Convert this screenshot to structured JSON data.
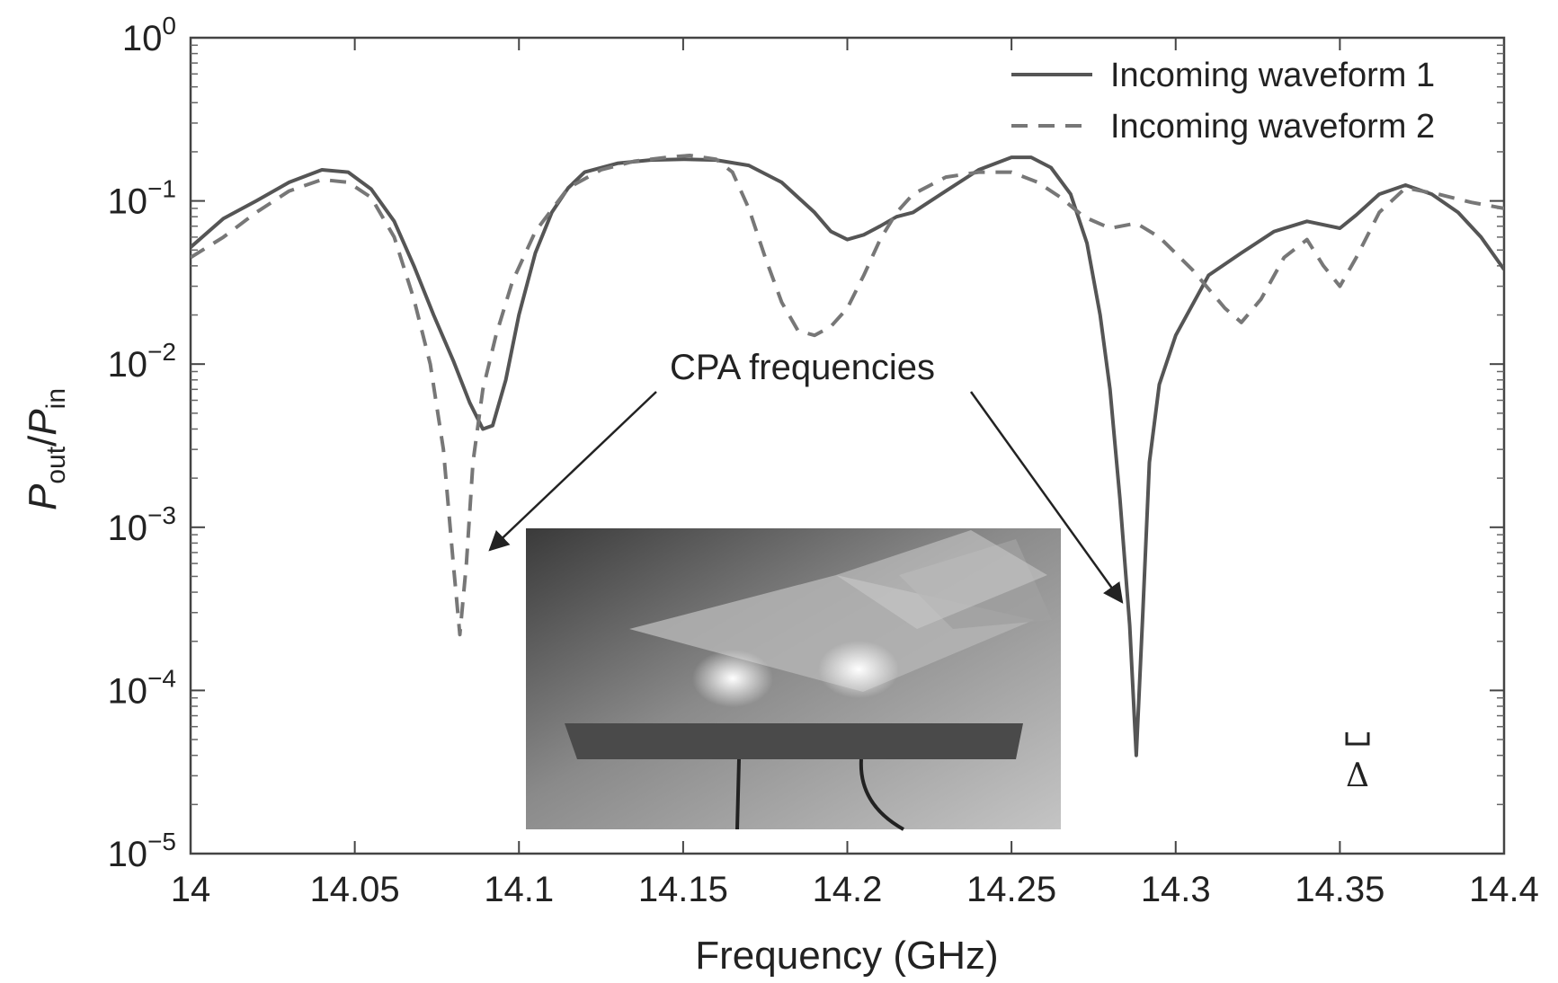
{
  "chart_data": {
    "type": "line",
    "xlabel": "Frequency (GHz)",
    "ylabel": "Pout/Pin",
    "ylabel_parts": {
      "p1": "P",
      "sub1": "out",
      "slash": "/",
      "p2": "P",
      "sub2": "in"
    },
    "x_scale": "linear",
    "y_scale": "log",
    "xlim": [
      14,
      14.4
    ],
    "ylim": [
      1e-05,
      1
    ],
    "x_ticks": [
      14,
      14.05,
      14.1,
      14.15,
      14.2,
      14.25,
      14.3,
      14.35,
      14.4
    ],
    "x_tick_labels": [
      "14",
      "14.05",
      "14.1",
      "14.15",
      "14.2",
      "14.25",
      "14.3",
      "14.35",
      "14.4"
    ],
    "y_ticks": [
      {
        "value": 1,
        "base": "10",
        "exp": "0"
      },
      {
        "value": 0.1,
        "base": "10",
        "exp": "−1"
      },
      {
        "value": 0.01,
        "base": "10",
        "exp": "−2"
      },
      {
        "value": 0.001,
        "base": "10",
        "exp": "−3"
      },
      {
        "value": 0.0001,
        "base": "10",
        "exp": "−4"
      },
      {
        "value": 1e-05,
        "base": "10",
        "exp": "−5"
      }
    ],
    "grid": false,
    "legend_position": "top-right",
    "series": [
      {
        "name": "Incoming waveform 1",
        "style": "solid",
        "color": "#555555",
        "points": [
          [
            14.0,
            0.052
          ],
          [
            14.01,
            0.078
          ],
          [
            14.02,
            0.1
          ],
          [
            14.03,
            0.13
          ],
          [
            14.04,
            0.155
          ],
          [
            14.048,
            0.15
          ],
          [
            14.055,
            0.118
          ],
          [
            14.062,
            0.075
          ],
          [
            14.068,
            0.04
          ],
          [
            14.074,
            0.02
          ],
          [
            14.08,
            0.0105
          ],
          [
            14.085,
            0.0058
          ],
          [
            14.089,
            0.004
          ],
          [
            14.092,
            0.0042
          ],
          [
            14.096,
            0.008
          ],
          [
            14.1,
            0.02
          ],
          [
            14.105,
            0.048
          ],
          [
            14.11,
            0.085
          ],
          [
            14.115,
            0.12
          ],
          [
            14.12,
            0.15
          ],
          [
            14.13,
            0.17
          ],
          [
            14.14,
            0.178
          ],
          [
            14.15,
            0.18
          ],
          [
            14.16,
            0.178
          ],
          [
            14.17,
            0.165
          ],
          [
            14.18,
            0.13
          ],
          [
            14.19,
            0.085
          ],
          [
            14.195,
            0.065
          ],
          [
            14.2,
            0.058
          ],
          [
            14.205,
            0.062
          ],
          [
            14.21,
            0.07
          ],
          [
            14.215,
            0.08
          ],
          [
            14.22,
            0.085
          ],
          [
            14.23,
            0.115
          ],
          [
            14.24,
            0.155
          ],
          [
            14.25,
            0.185
          ],
          [
            14.256,
            0.185
          ],
          [
            14.262,
            0.16
          ],
          [
            14.268,
            0.11
          ],
          [
            14.273,
            0.055
          ],
          [
            14.277,
            0.02
          ],
          [
            14.28,
            0.007
          ],
          [
            14.283,
            0.0015
          ],
          [
            14.286,
            0.00025
          ],
          [
            14.288,
            4e-05
          ],
          [
            14.29,
            0.0003
          ],
          [
            14.292,
            0.0025
          ],
          [
            14.295,
            0.0075
          ],
          [
            14.3,
            0.015
          ],
          [
            14.31,
            0.035
          ],
          [
            14.32,
            0.048
          ],
          [
            14.33,
            0.065
          ],
          [
            14.34,
            0.075
          ],
          [
            14.35,
            0.068
          ],
          [
            14.355,
            0.082
          ],
          [
            14.362,
            0.11
          ],
          [
            14.37,
            0.125
          ],
          [
            14.378,
            0.11
          ],
          [
            14.386,
            0.085
          ],
          [
            14.393,
            0.06
          ],
          [
            14.4,
            0.038
          ]
        ]
      },
      {
        "name": "Incoming waveform 2",
        "style": "dashed",
        "color": "#777777",
        "points": [
          [
            14.0,
            0.045
          ],
          [
            14.01,
            0.06
          ],
          [
            14.02,
            0.085
          ],
          [
            14.03,
            0.115
          ],
          [
            14.04,
            0.135
          ],
          [
            14.048,
            0.13
          ],
          [
            14.055,
            0.105
          ],
          [
            14.062,
            0.06
          ],
          [
            14.068,
            0.025
          ],
          [
            14.073,
            0.01
          ],
          [
            14.077,
            0.003
          ],
          [
            14.08,
            0.0006
          ],
          [
            14.082,
            0.00022
          ],
          [
            14.084,
            0.0006
          ],
          [
            14.086,
            0.0025
          ],
          [
            14.089,
            0.007
          ],
          [
            14.093,
            0.015
          ],
          [
            14.098,
            0.032
          ],
          [
            14.105,
            0.065
          ],
          [
            14.115,
            0.12
          ],
          [
            14.125,
            0.155
          ],
          [
            14.135,
            0.175
          ],
          [
            14.145,
            0.185
          ],
          [
            14.152,
            0.19
          ],
          [
            14.16,
            0.18
          ],
          [
            14.165,
            0.15
          ],
          [
            14.17,
            0.09
          ],
          [
            14.175,
            0.045
          ],
          [
            14.18,
            0.024
          ],
          [
            14.185,
            0.016
          ],
          [
            14.19,
            0.015
          ],
          [
            14.195,
            0.017
          ],
          [
            14.2,
            0.022
          ],
          [
            14.205,
            0.035
          ],
          [
            14.21,
            0.058
          ],
          [
            14.215,
            0.085
          ],
          [
            14.22,
            0.11
          ],
          [
            14.23,
            0.14
          ],
          [
            14.24,
            0.15
          ],
          [
            14.25,
            0.15
          ],
          [
            14.258,
            0.13
          ],
          [
            14.265,
            0.105
          ],
          [
            14.272,
            0.08
          ],
          [
            14.28,
            0.068
          ],
          [
            14.288,
            0.073
          ],
          [
            14.295,
            0.06
          ],
          [
            14.305,
            0.038
          ],
          [
            14.315,
            0.022
          ],
          [
            14.32,
            0.018
          ],
          [
            14.326,
            0.025
          ],
          [
            14.333,
            0.045
          ],
          [
            14.34,
            0.058
          ],
          [
            14.345,
            0.04
          ],
          [
            14.35,
            0.03
          ],
          [
            14.355,
            0.045
          ],
          [
            14.362,
            0.085
          ],
          [
            14.37,
            0.12
          ],
          [
            14.38,
            0.11
          ],
          [
            14.39,
            0.098
          ],
          [
            14.4,
            0.09
          ]
        ]
      }
    ],
    "annotations": [
      {
        "text": "CPA frequencies"
      }
    ],
    "scale_marker": {
      "symbol": "Δ"
    }
  }
}
